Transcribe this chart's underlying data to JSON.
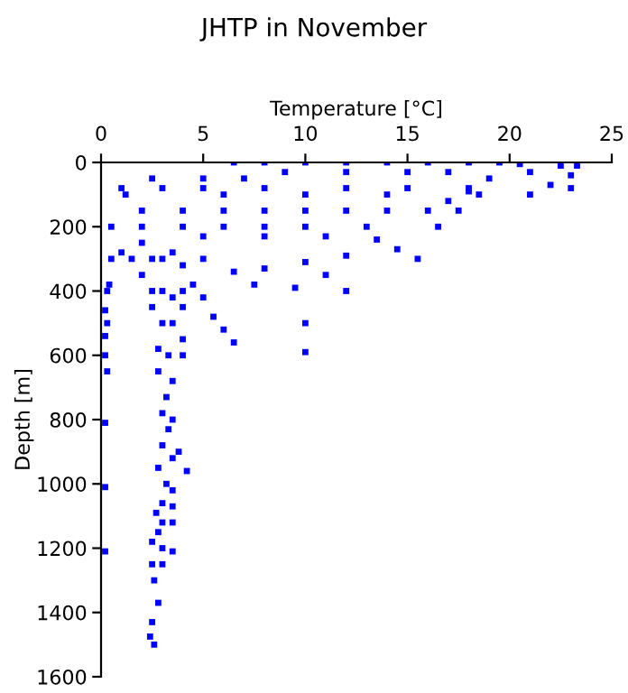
{
  "chart_data": {
    "type": "scatter",
    "title": "JHTP in November",
    "xlabel": "Temperature [°C]",
    "ylabel": "Depth [m]",
    "xlim": [
      0,
      25
    ],
    "xticks": [
      0,
      5,
      10,
      15,
      20,
      25
    ],
    "ylim": [
      1600,
      0
    ],
    "yticks": [
      0,
      200,
      400,
      600,
      800,
      1000,
      1200,
      1400,
      1600
    ],
    "grid": false,
    "legend": false,
    "marker": "square",
    "series": [
      {
        "color": "#0000ff",
        "x": [
          6.5,
          8,
          10,
          12,
          14,
          16,
          18,
          19.5,
          20.5,
          22.5,
          23.3,
          21,
          23,
          22,
          23,
          21,
          19,
          18,
          17,
          16,
          17.5,
          14,
          12,
          10,
          8,
          6,
          4,
          2,
          1,
          3,
          5,
          8,
          12,
          15,
          18,
          1.2,
          6,
          10,
          14,
          18.5,
          2.5,
          5,
          7,
          9,
          12,
          15,
          17,
          0.5,
          2,
          4,
          6,
          8,
          10,
          13,
          16.5,
          5,
          8,
          11,
          13.5,
          14.5,
          12,
          15.5,
          10,
          8,
          6.5,
          11,
          7.5,
          9.5,
          12,
          10,
          10,
          6.5,
          6,
          5.5,
          5,
          4,
          4.5,
          5,
          1,
          0.5,
          1.5,
          2,
          2.5,
          3,
          3.5,
          4,
          2,
          2.5,
          3,
          3.5,
          4,
          0.4,
          0.3,
          0.2,
          0.3,
          0.2,
          0.2,
          0.3,
          2.5,
          3,
          3.5,
          4,
          2.8,
          3.3,
          4,
          2.8,
          3.5,
          3.2,
          3,
          3.5,
          3.3,
          0.2,
          3,
          3.8,
          3.5,
          2.8,
          3.2,
          3.5,
          4.2,
          3,
          3.5,
          2.7,
          3,
          3.5,
          2.8,
          2.5,
          3,
          3.5,
          0.2,
          0.2,
          2.5,
          3,
          2.6,
          2.8,
          2.5,
          2.4,
          2.6
        ],
        "values": [
          0,
          0,
          0,
          0,
          0,
          0,
          0,
          0,
          5,
          10,
          10,
          30,
          40,
          70,
          80,
          100,
          50,
          90,
          120,
          150,
          150,
          150,
          150,
          150,
          150,
          150,
          150,
          150,
          80,
          80,
          80,
          80,
          80,
          80,
          80,
          100,
          100,
          100,
          100,
          100,
          50,
          50,
          50,
          30,
          30,
          30,
          30,
          200,
          200,
          200,
          200,
          200,
          200,
          200,
          200,
          230,
          230,
          230,
          240,
          270,
          290,
          300,
          310,
          330,
          340,
          350,
          380,
          390,
          400,
          500,
          590,
          560,
          520,
          480,
          420,
          450,
          380,
          300,
          280,
          300,
          300,
          250,
          300,
          300,
          280,
          320,
          350,
          400,
          400,
          420,
          400,
          380,
          400,
          460,
          500,
          540,
          600,
          650,
          450,
          500,
          500,
          550,
          580,
          600,
          600,
          650,
          680,
          730,
          780,
          800,
          830,
          810,
          880,
          900,
          920,
          950,
          1000,
          1020,
          960,
          1060,
          1070,
          1090,
          1120,
          1120,
          1150,
          1180,
          1200,
          1210,
          1210,
          1010,
          1250,
          1250,
          1300,
          1370,
          1430,
          1475,
          1500
        ]
      }
    ]
  }
}
